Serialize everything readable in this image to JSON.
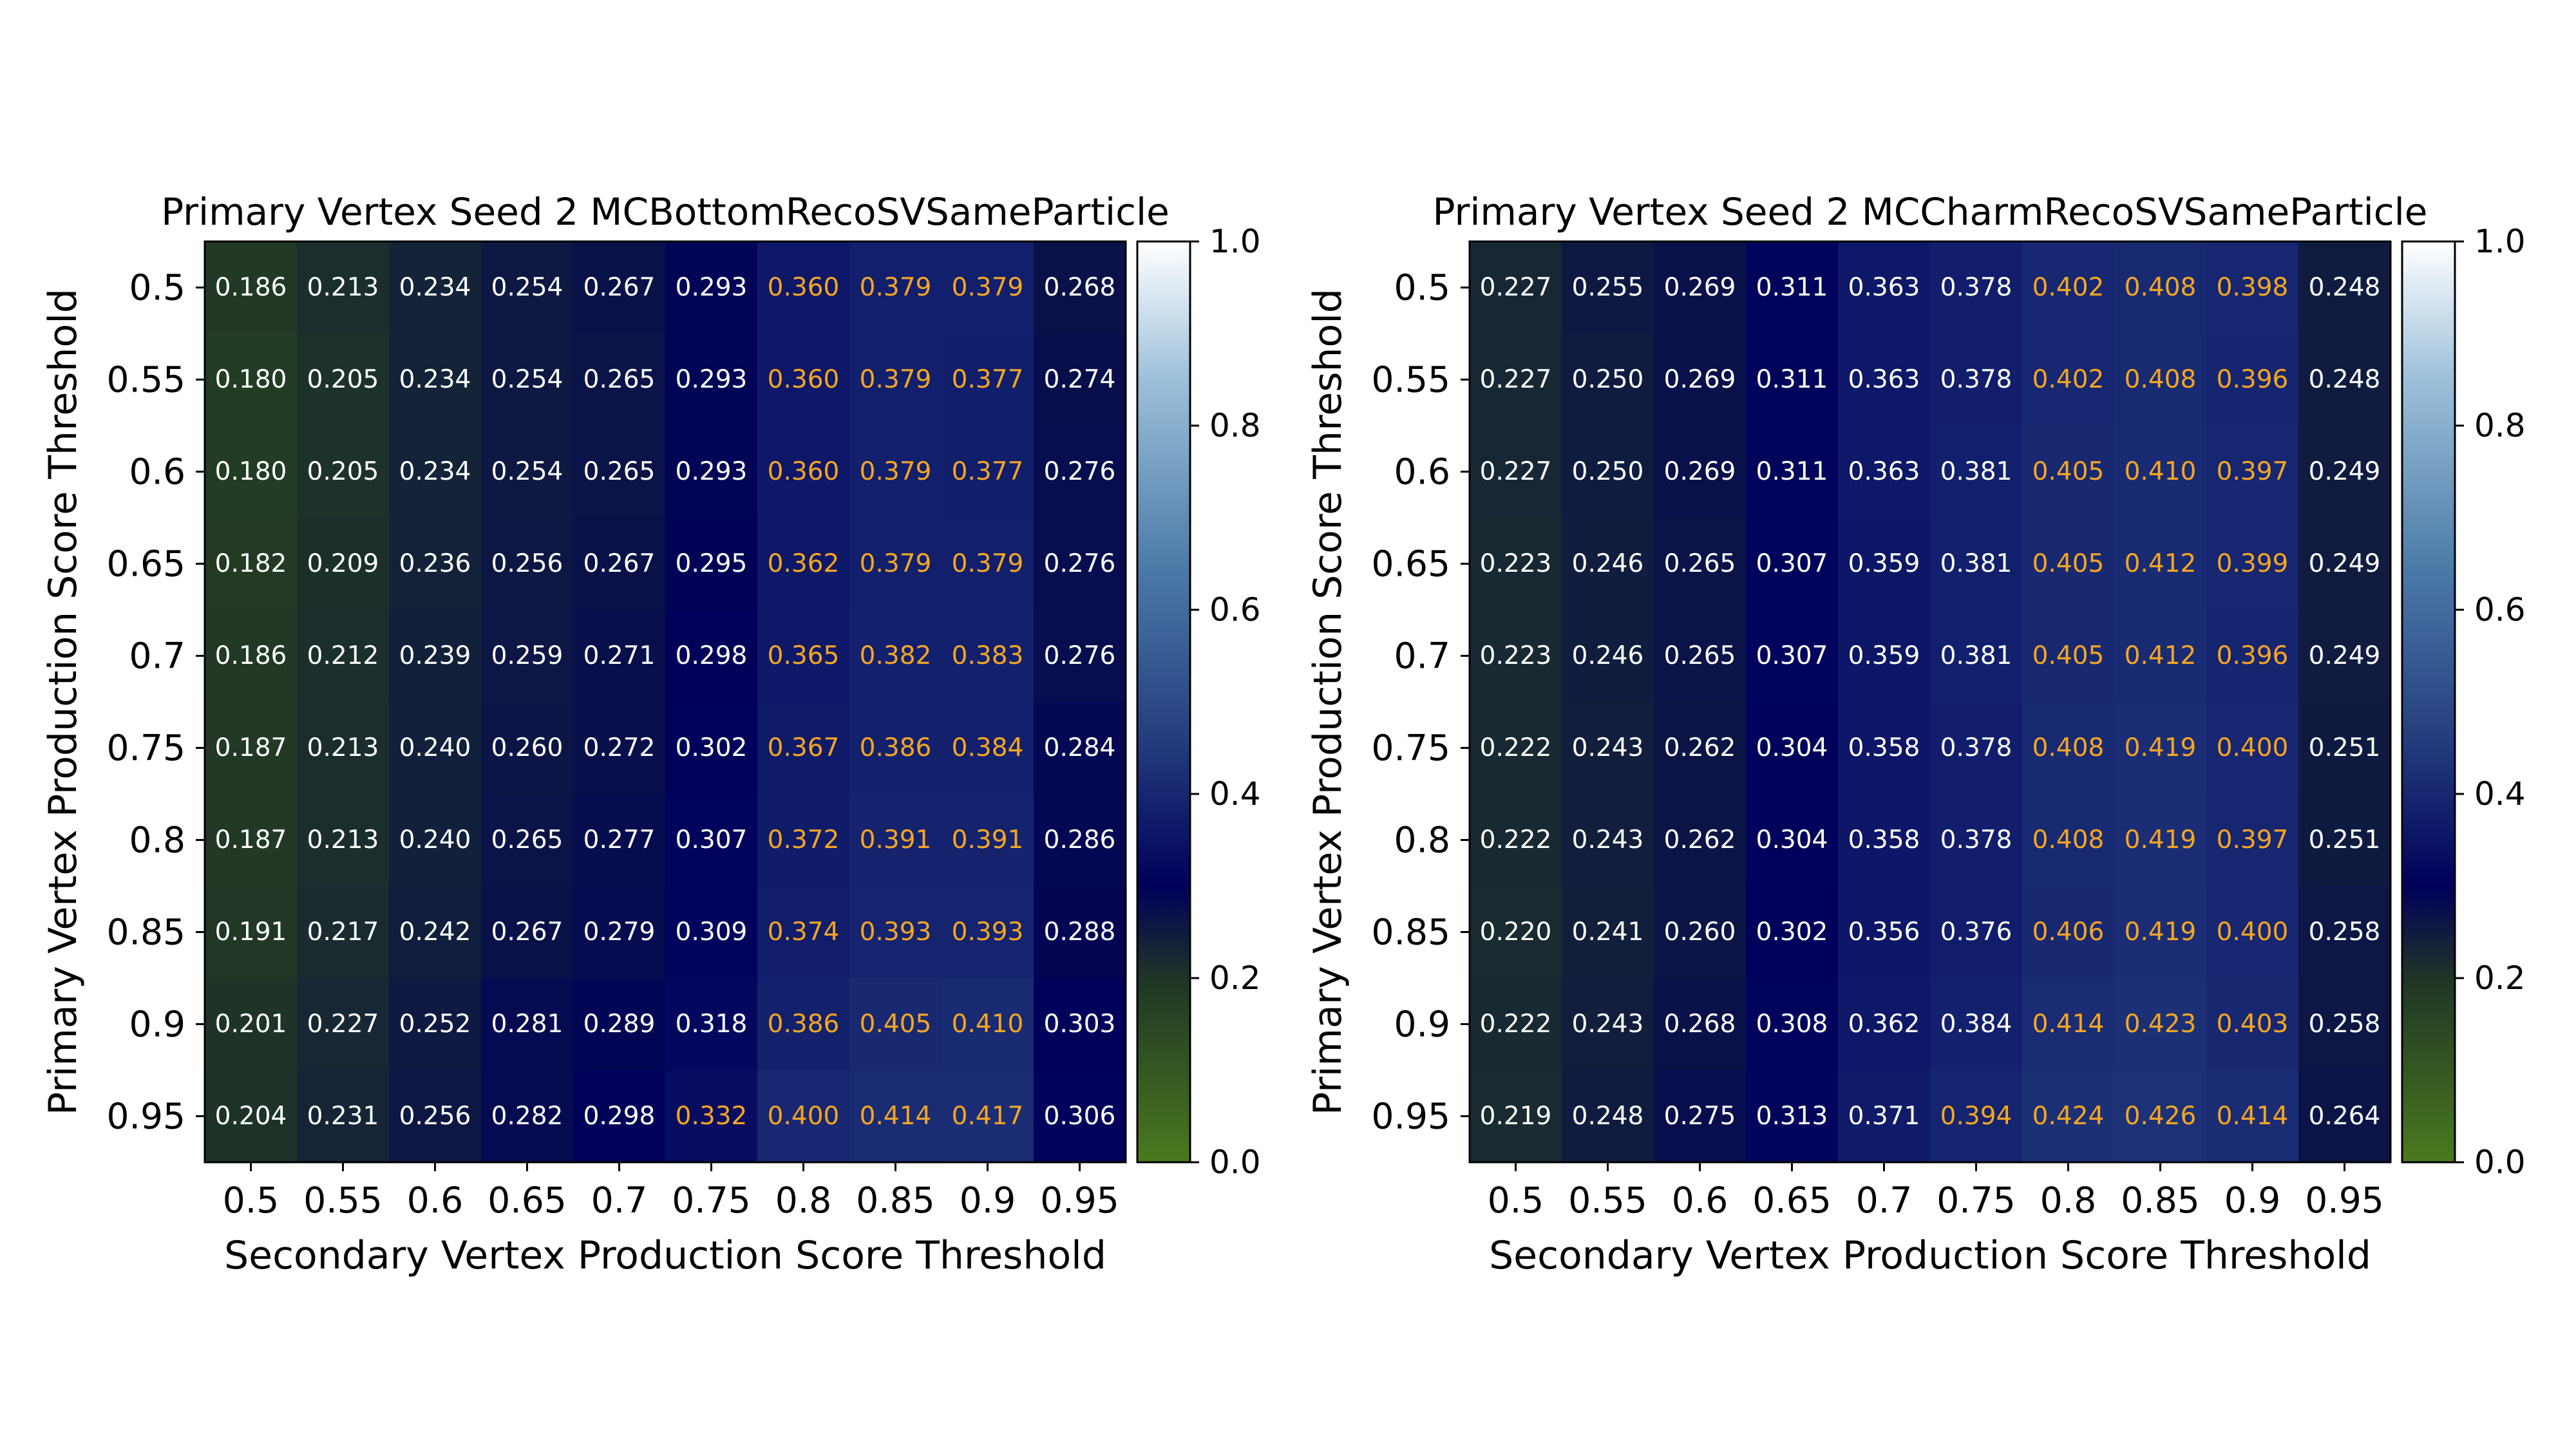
{
  "colormap": {
    "name": "green-navy-white",
    "stops": [
      {
        "v": 0.0,
        "color": "#4a7a1e"
      },
      {
        "v": 0.2,
        "color": "#1f3526"
      },
      {
        "v": 0.3,
        "color": "#00005a"
      },
      {
        "v": 0.45,
        "color": "#223a7c"
      },
      {
        "v": 0.65,
        "color": "#4d7ca9"
      },
      {
        "v": 0.85,
        "color": "#9dc0da"
      },
      {
        "v": 1.0,
        "color": "#ffffff"
      }
    ]
  },
  "annotation_colors": {
    "default": "#ffffff",
    "highlight": "#f5a623"
  },
  "chart_data": [
    {
      "type": "heatmap",
      "title": "Primary Vertex Seed 2 MCBottomRecoSVSameParticle",
      "xlabel": "Secondary Vertex Production Score Threshold",
      "ylabel": "Primary Vertex Production Score Threshold",
      "x_categories": [
        "0.5",
        "0.55",
        "0.6",
        "0.65",
        "0.7",
        "0.75",
        "0.8",
        "0.85",
        "0.9",
        "0.95"
      ],
      "y_categories": [
        "0.5",
        "0.55",
        "0.6",
        "0.65",
        "0.7",
        "0.75",
        "0.8",
        "0.85",
        "0.9",
        "0.95"
      ],
      "vlim": [
        0.0,
        1.0
      ],
      "colorbar_ticks": [
        "0.0",
        "0.2",
        "0.4",
        "0.6",
        "0.8",
        "1.0"
      ],
      "values": [
        [
          "0.186",
          "0.213",
          "0.234",
          "0.254",
          "0.267",
          "0.293",
          "0.360",
          "0.379",
          "0.379",
          "0.268"
        ],
        [
          "0.180",
          "0.205",
          "0.234",
          "0.254",
          "0.265",
          "0.293",
          "0.360",
          "0.379",
          "0.377",
          "0.274"
        ],
        [
          "0.180",
          "0.205",
          "0.234",
          "0.254",
          "0.265",
          "0.293",
          "0.360",
          "0.379",
          "0.377",
          "0.276"
        ],
        [
          "0.182",
          "0.209",
          "0.236",
          "0.256",
          "0.267",
          "0.295",
          "0.362",
          "0.379",
          "0.379",
          "0.276"
        ],
        [
          "0.186",
          "0.212",
          "0.239",
          "0.259",
          "0.271",
          "0.298",
          "0.365",
          "0.382",
          "0.383",
          "0.276"
        ],
        [
          "0.187",
          "0.213",
          "0.240",
          "0.260",
          "0.272",
          "0.302",
          "0.367",
          "0.386",
          "0.384",
          "0.284"
        ],
        [
          "0.187",
          "0.213",
          "0.240",
          "0.265",
          "0.277",
          "0.307",
          "0.372",
          "0.391",
          "0.391",
          "0.286"
        ],
        [
          "0.191",
          "0.217",
          "0.242",
          "0.267",
          "0.279",
          "0.309",
          "0.374",
          "0.393",
          "0.393",
          "0.288"
        ],
        [
          "0.201",
          "0.227",
          "0.252",
          "0.281",
          "0.289",
          "0.318",
          "0.386",
          "0.405",
          "0.410",
          "0.303"
        ],
        [
          "0.204",
          "0.231",
          "0.256",
          "0.282",
          "0.298",
          "0.332",
          "0.400",
          "0.414",
          "0.417",
          "0.306"
        ]
      ],
      "highlight_threshold": 0.33
    },
    {
      "type": "heatmap",
      "title": "Primary Vertex Seed 2 MCCharmRecoSVSameParticle",
      "xlabel": "Secondary Vertex Production Score Threshold",
      "ylabel": "Primary Vertex Production Score Threshold",
      "x_categories": [
        "0.5",
        "0.55",
        "0.6",
        "0.65",
        "0.7",
        "0.75",
        "0.8",
        "0.85",
        "0.9",
        "0.95"
      ],
      "y_categories": [
        "0.5",
        "0.55",
        "0.6",
        "0.65",
        "0.7",
        "0.75",
        "0.8",
        "0.85",
        "0.9",
        "0.95"
      ],
      "vlim": [
        0.0,
        1.0
      ],
      "colorbar_ticks": [
        "0.0",
        "0.2",
        "0.4",
        "0.6",
        "0.8",
        "1.0"
      ],
      "values": [
        [
          "0.227",
          "0.255",
          "0.269",
          "0.311",
          "0.363",
          "0.378",
          "0.402",
          "0.408",
          "0.398",
          "0.248"
        ],
        [
          "0.227",
          "0.250",
          "0.269",
          "0.311",
          "0.363",
          "0.378",
          "0.402",
          "0.408",
          "0.396",
          "0.248"
        ],
        [
          "0.227",
          "0.250",
          "0.269",
          "0.311",
          "0.363",
          "0.381",
          "0.405",
          "0.410",
          "0.397",
          "0.249"
        ],
        [
          "0.223",
          "0.246",
          "0.265",
          "0.307",
          "0.359",
          "0.381",
          "0.405",
          "0.412",
          "0.399",
          "0.249"
        ],
        [
          "0.223",
          "0.246",
          "0.265",
          "0.307",
          "0.359",
          "0.381",
          "0.405",
          "0.412",
          "0.396",
          "0.249"
        ],
        [
          "0.222",
          "0.243",
          "0.262",
          "0.304",
          "0.358",
          "0.378",
          "0.408",
          "0.419",
          "0.400",
          "0.251"
        ],
        [
          "0.222",
          "0.243",
          "0.262",
          "0.304",
          "0.358",
          "0.378",
          "0.408",
          "0.419",
          "0.397",
          "0.251"
        ],
        [
          "0.220",
          "0.241",
          "0.260",
          "0.302",
          "0.356",
          "0.376",
          "0.406",
          "0.419",
          "0.400",
          "0.258"
        ],
        [
          "0.222",
          "0.243",
          "0.268",
          "0.308",
          "0.362",
          "0.384",
          "0.414",
          "0.423",
          "0.403",
          "0.258"
        ],
        [
          "0.219",
          "0.248",
          "0.275",
          "0.313",
          "0.371",
          "0.394",
          "0.424",
          "0.426",
          "0.414",
          "0.264"
        ]
      ],
      "highlight_threshold": 0.39
    }
  ]
}
